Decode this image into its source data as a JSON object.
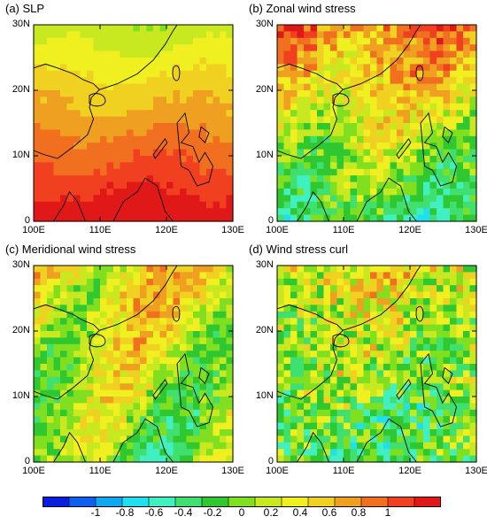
{
  "chart_data": [
    {
      "type": "heatmap",
      "title": "(a) SLP",
      "xticks": [
        "100E",
        "110E",
        "120E",
        "130E"
      ],
      "yticks": [
        "0",
        "10N",
        "20N",
        "30N"
      ],
      "xlim": [
        100,
        130
      ],
      "ylim": [
        0,
        30
      ],
      "pattern": {
        "base": 0.55,
        "grad_y": 0.45,
        "wave": 0.05,
        "noise": 0.03
      }
    },
    {
      "type": "heatmap",
      "title": "(b) Zonal wind stress",
      "xticks": [
        "100E",
        "110E",
        "120E",
        "130E"
      ],
      "yticks": [
        "0",
        "10N",
        "20N",
        "30N"
      ],
      "xlim": [
        100,
        130
      ],
      "ylim": [
        0,
        30
      ],
      "pattern": {
        "base": 0.2,
        "grad_y": -0.45,
        "wave": 0.15,
        "noise": 0.22
      }
    },
    {
      "type": "heatmap",
      "title": "(c) Meridional wind stress",
      "xticks": [
        "100E",
        "110E",
        "120E",
        "130E"
      ],
      "yticks": [
        "0",
        "10N",
        "20N",
        "30N"
      ],
      "xlim": [
        100,
        130
      ],
      "ylim": [
        0,
        30
      ],
      "pattern": {
        "base": 0.15,
        "grad_y": -0.2,
        "wave": 0.25,
        "noise": 0.2
      }
    },
    {
      "type": "heatmap",
      "title": "(d) Wind stress curl",
      "xticks": [
        "100E",
        "110E",
        "120E",
        "130E"
      ],
      "yticks": [
        "0",
        "10N",
        "20N",
        "30N"
      ],
      "xlim": [
        100,
        130
      ],
      "ylim": [
        0,
        30
      ],
      "pattern": {
        "base": 0.05,
        "grad_y": -0.25,
        "wave": 0.1,
        "noise": 0.35
      }
    }
  ],
  "colorbar": {
    "ticks": [
      "-1",
      "-0.8",
      "-0.6",
      "-0.4",
      "-0.2",
      "0",
      "0.2",
      "0.4",
      "0.6",
      "0.8",
      "1"
    ],
    "range": [
      -1,
      1
    ],
    "colors": [
      "#0a1ee0",
      "#1060f0",
      "#10a8f0",
      "#20e0f0",
      "#40f0c0",
      "#40e070",
      "#30c830",
      "#80e020",
      "#c8e820",
      "#f0f020",
      "#f0d020",
      "#f0a020",
      "#f07020",
      "#f04020",
      "#e01818"
    ]
  }
}
